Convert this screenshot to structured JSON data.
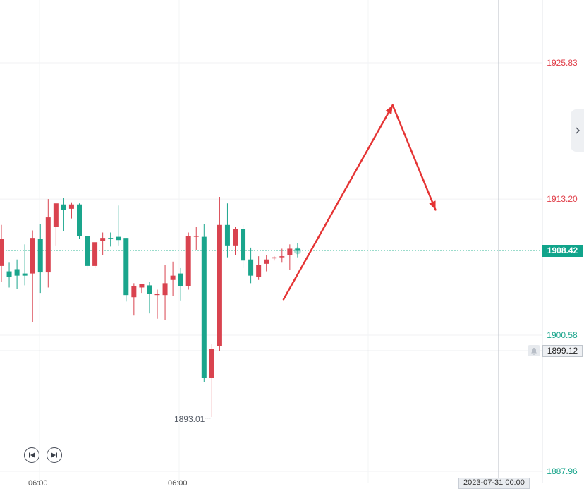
{
  "chart_data": {
    "type": "candlestick",
    "y_axis_ticks": [
      1925.83,
      1913.2,
      1900.58,
      1887.96
    ],
    "ylim": [
      1887.96,
      1932.4
    ],
    "current_price": "1908.42",
    "crosshair_price": "1899.12",
    "low_annotation": "1893.01",
    "candles": [
      {
        "o": 1907.0,
        "h": 1910.8,
        "l": 1905.5,
        "c": 1909.5
      },
      {
        "o": 1906.5,
        "h": 1907.3,
        "l": 1905.0,
        "c": 1906.0
      },
      {
        "o": 1906.7,
        "h": 1907.6,
        "l": 1904.9,
        "c": 1906.1
      },
      {
        "o": 1906.3,
        "h": 1909.0,
        "l": 1905.2,
        "c": 1906.1
      },
      {
        "o": 1906.3,
        "h": 1910.3,
        "l": 1901.8,
        "c": 1909.6
      },
      {
        "o": 1909.5,
        "h": 1910.9,
        "l": 1904.5,
        "c": 1906.4
      },
      {
        "o": 1906.4,
        "h": 1913.2,
        "l": 1905.0,
        "c": 1911.5
      },
      {
        "o": 1910.6,
        "h": 1912.4,
        "l": 1908.9,
        "c": 1912.8
      },
      {
        "o": 1912.7,
        "h": 1913.3,
        "l": 1910.2,
        "c": 1912.2
      },
      {
        "o": 1912.3,
        "h": 1912.9,
        "l": 1911.4,
        "c": 1912.7
      },
      {
        "o": 1912.7,
        "h": 1912.8,
        "l": 1909.5,
        "c": 1909.8
      },
      {
        "o": 1909.8,
        "h": 1909.8,
        "l": 1906.7,
        "c": 1907.0
      },
      {
        "o": 1907.0,
        "h": 1908.9,
        "l": 1906.8,
        "c": 1909.2
      },
      {
        "o": 1909.3,
        "h": 1910.1,
        "l": 1908.0,
        "c": 1909.6
      },
      {
        "o": 1909.6,
        "h": 1910.1,
        "l": 1908.8,
        "c": 1909.5
      },
      {
        "o": 1909.7,
        "h": 1912.6,
        "l": 1908.9,
        "c": 1909.4
      },
      {
        "o": 1909.6,
        "h": 1909.6,
        "l": 1903.7,
        "c": 1904.3
      },
      {
        "o": 1904.1,
        "h": 1905.4,
        "l": 1902.4,
        "c": 1905.1
      },
      {
        "o": 1905.0,
        "h": 1905.3,
        "l": 1904.5,
        "c": 1905.3
      },
      {
        "o": 1905.2,
        "h": 1905.5,
        "l": 1902.6,
        "c": 1904.4
      },
      {
        "o": 1904.3,
        "h": 1904.8,
        "l": 1902.1,
        "c": 1904.4
      },
      {
        "o": 1904.3,
        "h": 1907.1,
        "l": 1902.0,
        "c": 1905.4
      },
      {
        "o": 1905.7,
        "h": 1907.4,
        "l": 1904.2,
        "c": 1906.1
      },
      {
        "o": 1906.3,
        "h": 1906.8,
        "l": 1903.8,
        "c": 1905.1
      },
      {
        "o": 1905.1,
        "h": 1910.1,
        "l": 1904.8,
        "c": 1909.8
      },
      {
        "o": 1909.7,
        "h": 1910.6,
        "l": 1908.5,
        "c": 1909.8
      },
      {
        "o": 1909.7,
        "h": 1910.9,
        "l": 1896.2,
        "c": 1896.6
      },
      {
        "o": 1896.6,
        "h": 1899.8,
        "l": 1893.0,
        "c": 1899.3
      },
      {
        "o": 1899.6,
        "h": 1913.4,
        "l": 1899.1,
        "c": 1910.8
      },
      {
        "o": 1910.8,
        "h": 1912.8,
        "l": 1907.8,
        "c": 1908.9
      },
      {
        "o": 1908.9,
        "h": 1910.6,
        "l": 1908.0,
        "c": 1910.4
      },
      {
        "o": 1910.4,
        "h": 1910.8,
        "l": 1906.8,
        "c": 1907.5
      },
      {
        "o": 1907.6,
        "h": 1908.7,
        "l": 1905.4,
        "c": 1906.1
      },
      {
        "o": 1906.0,
        "h": 1907.9,
        "l": 1905.7,
        "c": 1907.1
      },
      {
        "o": 1907.2,
        "h": 1908.0,
        "l": 1906.5,
        "c": 1907.6
      },
      {
        "o": 1907.7,
        "h": 1907.9,
        "l": 1907.5,
        "c": 1907.8
      },
      {
        "o": 1907.8,
        "h": 1908.6,
        "l": 1907.3,
        "c": 1907.9
      },
      {
        "o": 1908.0,
        "h": 1909.0,
        "l": 1906.6,
        "c": 1908.6
      },
      {
        "o": 1908.6,
        "h": 1909.1,
        "l": 1907.8,
        "c": 1908.4
      }
    ],
    "drawings": [
      {
        "points": [
          [
            36.2,
            1903.9
          ],
          [
            50.2,
            1921.9
          ]
        ]
      },
      {
        "points": [
          [
            50.2,
            1921.9
          ],
          [
            55.7,
            1912.2
          ]
        ]
      }
    ],
    "colors": {
      "up": "#d9434f",
      "down": "#1aa58c",
      "axis_up": "#e03c47",
      "axis_down": "#1aa58c",
      "arrow": "#e53434"
    }
  },
  "x_axis": {
    "labels": [
      "06:00",
      "06:00"
    ],
    "badge": "2023-07-31 00:00"
  },
  "controls": {
    "prev_icon": "skip-back-icon",
    "play_icon": "skip-forward-icon",
    "side_icon": "chevron-right-icon"
  }
}
